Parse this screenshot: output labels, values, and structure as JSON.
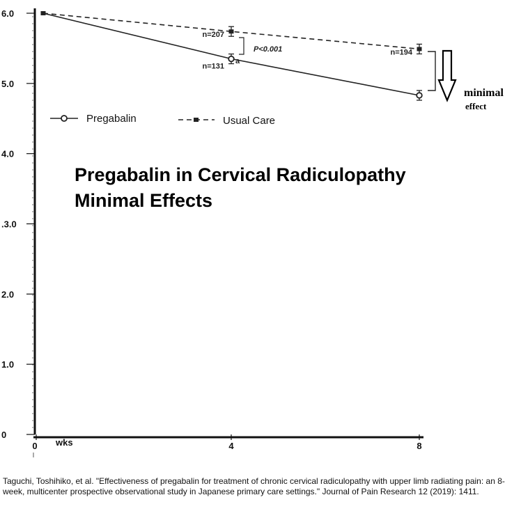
{
  "chart_data": {
    "type": "line",
    "x": [
      0,
      4,
      8
    ],
    "x_tick_labels": [
      "0",
      "4",
      "8"
    ],
    "x_unit": "wks",
    "y_tick_labels": [
      "0",
      "1.0",
      "2.0",
      ".3.0",
      "4.0",
      "5.0",
      "6.0"
    ],
    "y_ticks": [
      0,
      1,
      2,
      3,
      4,
      5,
      6
    ],
    "ylim": [
      0,
      6
    ],
    "xlim": [
      0,
      8
    ],
    "series": [
      {
        "name": "Pregabalin",
        "values": [
          6.0,
          5.35,
          4.83
        ],
        "style": "solid",
        "marker": "open-circle",
        "color": "#222222",
        "n_labels": [
          "",
          "n=131",
          ""
        ]
      },
      {
        "name": "Usual Care",
        "values": [
          6.0,
          5.74,
          5.49
        ],
        "style": "dashed",
        "marker": "filled-square",
        "color": "#222222",
        "n_labels": [
          "",
          "n=207",
          "n=194"
        ]
      }
    ],
    "annotations": {
      "p_value": "P<0.001",
      "superscript": "a",
      "arrow_label_line1": "minimal",
      "arrow_label_line2": "effect"
    },
    "overlay_title_line1": "Pregabalin in Cervical Radiculopathy",
    "overlay_title_line2": "Minimal Effects",
    "grid": false,
    "legend_position": "top-left"
  },
  "citation": "Taguchi, Toshihiko, et al. \"Effectiveness of pregabalin for treatment of chronic cervical radiculopathy with upper limb radiating pain: an 8-week, multicenter prospective observational study in Japanese primary care settings.\" Journal of Pain Research 12 (2019): 1411."
}
